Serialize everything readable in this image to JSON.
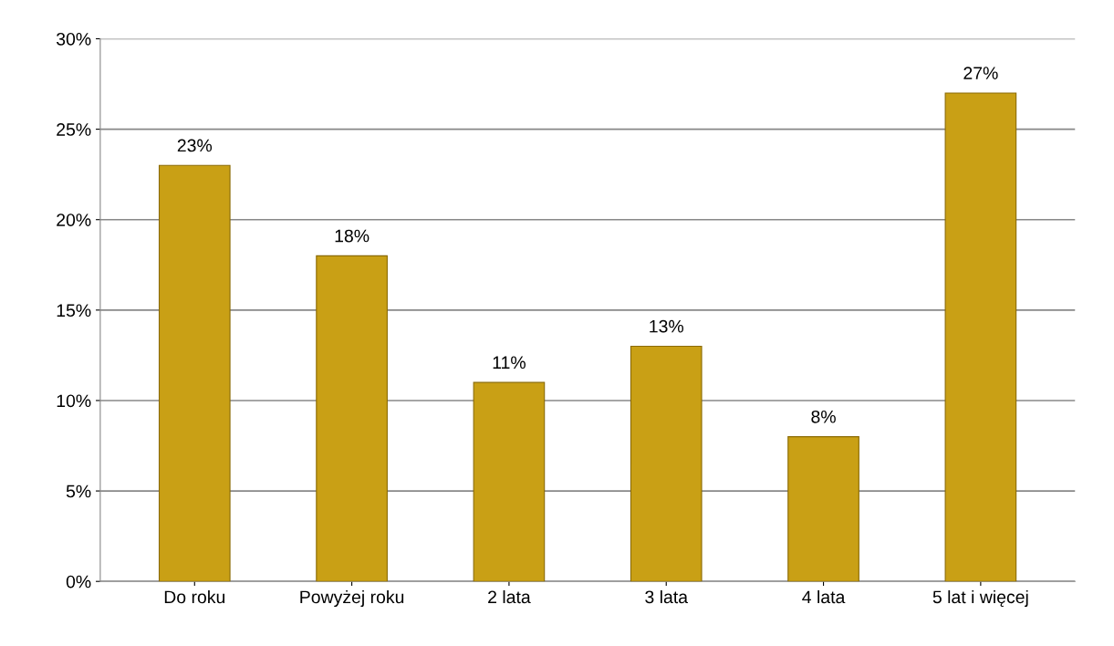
{
  "chart_data": {
    "type": "bar",
    "categories": [
      "Do roku",
      "Powyżej roku",
      "2 lata",
      "3 lata",
      "4 lata",
      "5 lat i więcej"
    ],
    "values": [
      23,
      18,
      11,
      13,
      8,
      27
    ],
    "value_labels": [
      "23%",
      "18%",
      "11%",
      "13%",
      "8%",
      "27%"
    ],
    "color": "#c9a015",
    "ylim": [
      0,
      30
    ],
    "yticks": [
      {
        "value": 0,
        "label": "0%"
      },
      {
        "value": 5,
        "label": "5%"
      },
      {
        "value": 10,
        "label": "10%"
      },
      {
        "value": 15,
        "label": "15%"
      },
      {
        "value": 20,
        "label": "20%"
      },
      {
        "value": 25,
        "label": "25%"
      },
      {
        "value": 30,
        "label": "30%"
      }
    ],
    "grid": "y"
  }
}
